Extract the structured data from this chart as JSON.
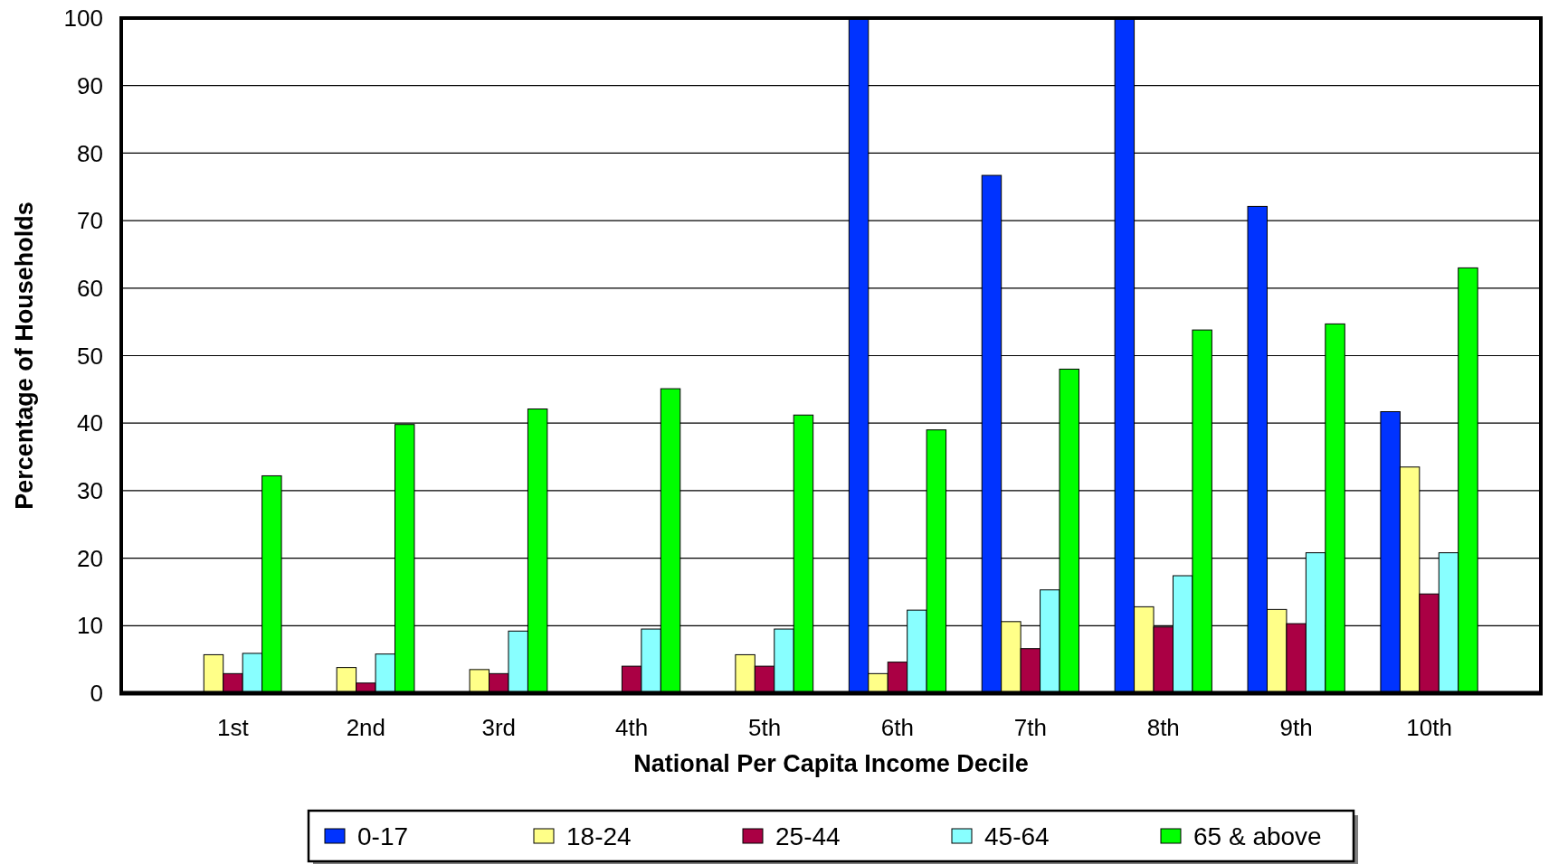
{
  "chart_data": {
    "type": "bar",
    "xlabel": "National Per Capita Income Decile",
    "ylabel": "Percentage of Households",
    "categories": [
      "1st",
      "2nd",
      "3rd",
      "4th",
      "5th",
      "6th",
      "7th",
      "8th",
      "9th",
      "10th"
    ],
    "series": [
      {
        "name": "0-17",
        "color": "#0033ff",
        "values": [
          null,
          null,
          null,
          null,
          null,
          100,
          76.7,
          100,
          72.1,
          41.7
        ]
      },
      {
        "name": "18-24",
        "color": "#ffff88",
        "values": [
          5.7,
          3.8,
          3.5,
          null,
          5.7,
          2.9,
          10.6,
          12.8,
          12.4,
          33.5
        ]
      },
      {
        "name": "25-44",
        "color": "#aa0044",
        "values": [
          2.9,
          1.5,
          2.9,
          4.0,
          4.0,
          4.6,
          6.6,
          9.8,
          10.3,
          14.7
        ]
      },
      {
        "name": "45-64",
        "color": "#88ffff",
        "values": [
          5.9,
          5.8,
          9.2,
          9.5,
          9.5,
          12.3,
          15.3,
          17.4,
          20.8,
          20.8
        ]
      },
      {
        "name": "65 & above",
        "color": "#00ff00",
        "values": [
          32.2,
          39.8,
          42.1,
          45.1,
          41.2,
          39.0,
          48.0,
          53.8,
          54.7,
          63.0
        ]
      }
    ],
    "ylim": [
      0,
      100
    ],
    "yticks": [
      0,
      10,
      20,
      30,
      40,
      50,
      60,
      70,
      80,
      90,
      100
    ],
    "grid": "y",
    "legend": "bottom"
  }
}
